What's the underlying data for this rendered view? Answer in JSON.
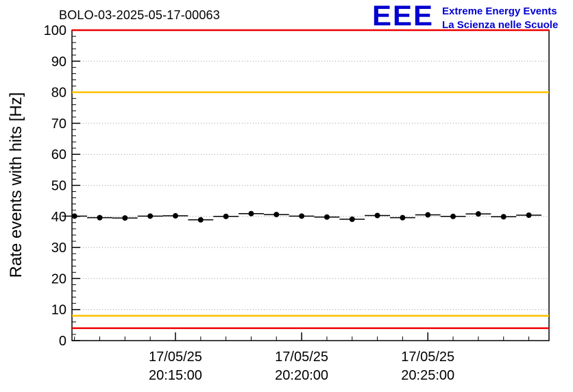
{
  "logo": {
    "acronym": "EEE",
    "line1": "Extreme Energy Events",
    "line2": "La Scienza nelle Scuole",
    "color": "#0000d0"
  },
  "chart_data": {
    "type": "scatter",
    "title": "BOLO-03-2025-05-17-00063",
    "ylabel": "Rate events with hits [Hz]",
    "ylim": [
      0,
      100
    ],
    "y_major_ticks": [
      0,
      10,
      20,
      30,
      40,
      50,
      60,
      70,
      80,
      90,
      100
    ],
    "y_minor_step": 2,
    "grid": "horizontal-dotted",
    "xlim_minutes_after_20h": [
      10.9,
      29.8
    ],
    "x_minor_step_minutes": 1,
    "x_ticks": [
      {
        "minutes": 15,
        "date": "17/05/25",
        "time": "20:15:00"
      },
      {
        "minutes": 20,
        "date": "17/05/25",
        "time": "20:20:00"
      },
      {
        "minutes": 25,
        "date": "17/05/25",
        "time": "20:25:00"
      }
    ],
    "reference_lines": [
      {
        "y": 100,
        "color": "#ee0000"
      },
      {
        "y": 80,
        "color": "#ffc000"
      },
      {
        "y": 8,
        "color": "#ffc000"
      },
      {
        "y": 4,
        "color": "#ee0000"
      }
    ],
    "series": [
      {
        "name": "rate-events-with-hits",
        "marker": "filled-circle",
        "color": "#000000",
        "x_minutes_after_20h": [
          11,
          12,
          13,
          14,
          15,
          16,
          17,
          18,
          19,
          20,
          21,
          22,
          23,
          24,
          25,
          26,
          27,
          28,
          29
        ],
        "x_times": [
          "20:11:00",
          "20:12:00",
          "20:13:00",
          "20:14:00",
          "20:15:00",
          "20:16:00",
          "20:17:00",
          "20:18:00",
          "20:19:00",
          "20:20:00",
          "20:21:00",
          "20:22:00",
          "20:23:00",
          "20:24:00",
          "20:25:00",
          "20:26:00",
          "20:27:00",
          "20:28:00",
          "20:29:00"
        ],
        "values": [
          40.1,
          39.6,
          39.5,
          40.1,
          40.2,
          38.9,
          40.0,
          40.9,
          40.6,
          40.1,
          39.8,
          39.1,
          40.3,
          39.6,
          40.5,
          40.0,
          40.8,
          39.9,
          40.4
        ],
        "x_err_minutes": 0.5,
        "y_err_hz": 0.5
      }
    ]
  }
}
